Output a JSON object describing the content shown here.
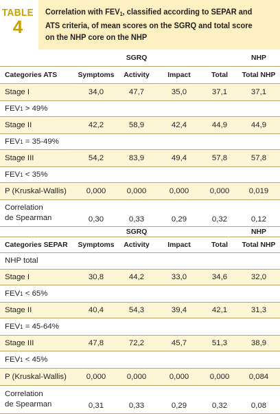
{
  "header": {
    "table_label": "TABLE",
    "table_number": "4",
    "title_part1": "Correlation with FEV",
    "title_sub": "1",
    "title_part2": ", classified according to SEPAR and ATS criteria, of mean scores on the SGRQ and total score on the NHP core on the NHP"
  },
  "section_ats": {
    "group_sgrq": "SGRQ",
    "group_nhp": "NHP",
    "columns": [
      "Categories ATS",
      "Symptoms",
      "Activity",
      "Impact",
      "Total",
      "Total NHP"
    ],
    "rows": [
      {
        "label": "Stage I",
        "values": [
          "34,0",
          "47,7",
          "35,0",
          "37,1",
          "37,1"
        ]
      },
      {
        "label_pre": "FEV",
        "label_sub": "1",
        "label_post": " > 49%"
      },
      {
        "label": "Stage II",
        "values": [
          "42,2",
          "58,9",
          "42,4",
          "44,9",
          "44,9"
        ]
      },
      {
        "label_pre": "FEV",
        "label_sub": "1",
        "label_post": " = 35-49%"
      },
      {
        "label": "Stage III",
        "values": [
          "54,2",
          "83,9",
          "49,4",
          "57,8",
          "57,8"
        ]
      },
      {
        "label_pre": "FEV",
        "label_sub": "1",
        "label_post": " < 35%"
      },
      {
        "label": "P (Kruskal-Wallis)",
        "values": [
          "0,000",
          "0,000",
          "0,000",
          "0,000",
          "0,019"
        ]
      },
      {
        "label_line1": "Correlation",
        "label_line2": "de Spearman",
        "values": [
          "0,30",
          "0,33",
          "0,29",
          "0,32",
          "0,12"
        ]
      }
    ]
  },
  "section_separ": {
    "group_sgrq": "SGRQ",
    "group_nhp": "NHP",
    "columns": [
      "Categories SEPAR",
      "Symptoms",
      "Activity",
      "Impact",
      "Total",
      "Total NHP"
    ],
    "rows": [
      {
        "label": "NHP total"
      },
      {
        "label": "Stage I",
        "values": [
          "30,8",
          "44,2",
          "33,0",
          "34,6",
          "32,0"
        ]
      },
      {
        "label_pre": "FEV",
        "label_sub": "1",
        "label_post": " < 65%"
      },
      {
        "label": "Stage II",
        "values": [
          "40,4",
          "54,3",
          "39,4",
          "42,1",
          "31,3"
        ]
      },
      {
        "label_pre": "FEV",
        "label_sub": "1",
        "label_post": " = 45-64%"
      },
      {
        "label": "Stage III",
        "values": [
          "47,8",
          "72,2",
          "45,7",
          "51,3",
          "38,9"
        ]
      },
      {
        "label_pre": "FEV",
        "label_sub": "1",
        "label_post": " < 45%"
      },
      {
        "label": "P (Kruskal-Wallis)",
        "values": [
          "0,000",
          "0,000",
          "0,000",
          "0,000",
          "0,084"
        ]
      },
      {
        "label_line1": "Correlation",
        "label_line2": "de Spearman",
        "values": [
          "0,31",
          "0,33",
          "0,29",
          "0,32",
          "0,08"
        ]
      }
    ]
  },
  "colors": {
    "accent": "#c8a000",
    "title_bg": "#fdf1c2",
    "row_shade": "#fdf6d6",
    "rule": "#b9a76a"
  }
}
